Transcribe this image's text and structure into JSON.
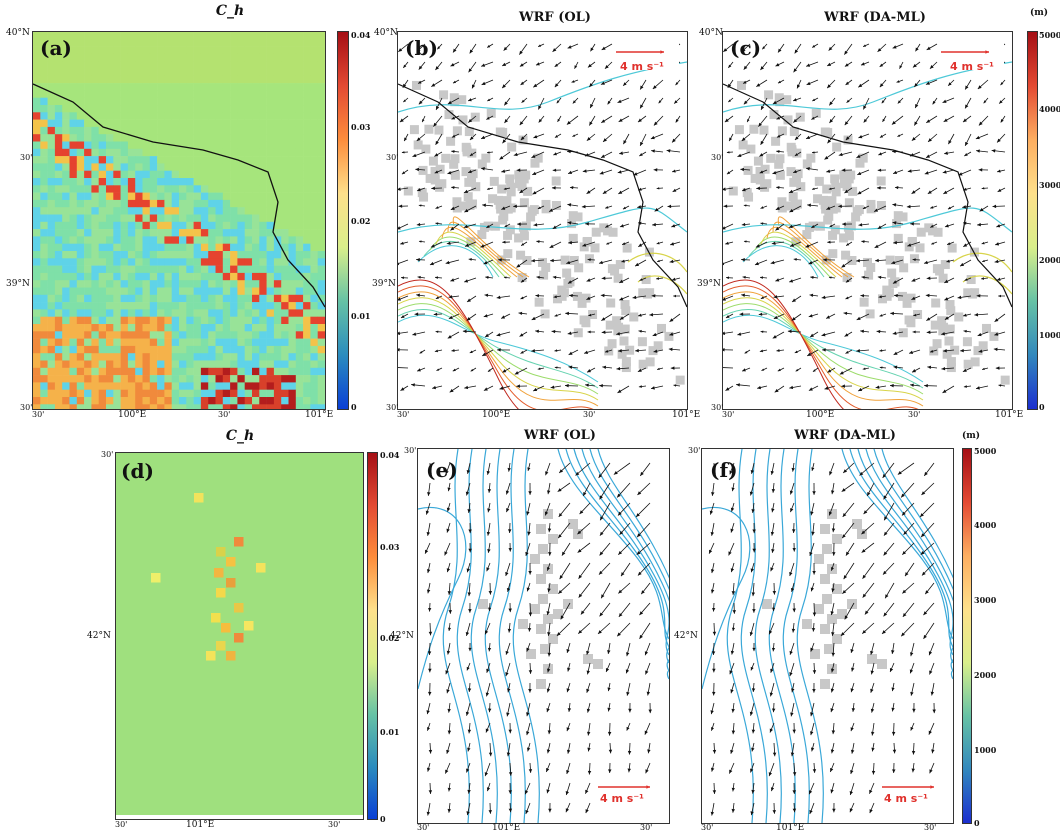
{
  "top_row": {
    "a": {
      "title": "C_h",
      "label": "(a)"
    },
    "b": {
      "title": "WRF (OL)",
      "label": "(b)",
      "wind_label": "4 m s⁻¹"
    },
    "c": {
      "title": "WRF (DA-ML)",
      "label": "(c)",
      "wind_label": "4 m s⁻¹"
    },
    "lat_ticks": [
      "40°N",
      "30'",
      "39°N",
      "30'"
    ],
    "lon_ticks": [
      "30'",
      "100°E",
      "30'",
      "101°E"
    ]
  },
  "bottom_row": {
    "d": {
      "title": "C_h",
      "label": "(d)"
    },
    "e": {
      "title": "WRF (OL)",
      "label": "(e)",
      "wind_label": "4 m s⁻¹"
    },
    "f": {
      "title": "WRF (DA-ML)",
      "label": "(f)",
      "wind_label": "4 m s⁻¹"
    },
    "lat_ticks": [
      "30'",
      "42°N"
    ],
    "lon_ticks": [
      "30'",
      "101°E",
      "30'"
    ]
  },
  "ch_colorbar": {
    "ticks": [
      "0.04",
      "0.03",
      "0.02",
      "0.01",
      "0"
    ]
  },
  "height_colorbar": {
    "unit": "(m)",
    "ticks": [
      "5000",
      "4000",
      "3000",
      "2000",
      "1000",
      "0"
    ]
  },
  "colors": {
    "ch_background": "#9ee07a",
    "ch_low": "#5ccff0",
    "ch_high": "#c9271e",
    "terrain_gray": "#c8c8c8",
    "contour_cyan": "#4ec9d8",
    "contour_blue": "#3aa8d8",
    "wind_arrow": "#111111",
    "reference_arrow": "#e0322d"
  }
}
